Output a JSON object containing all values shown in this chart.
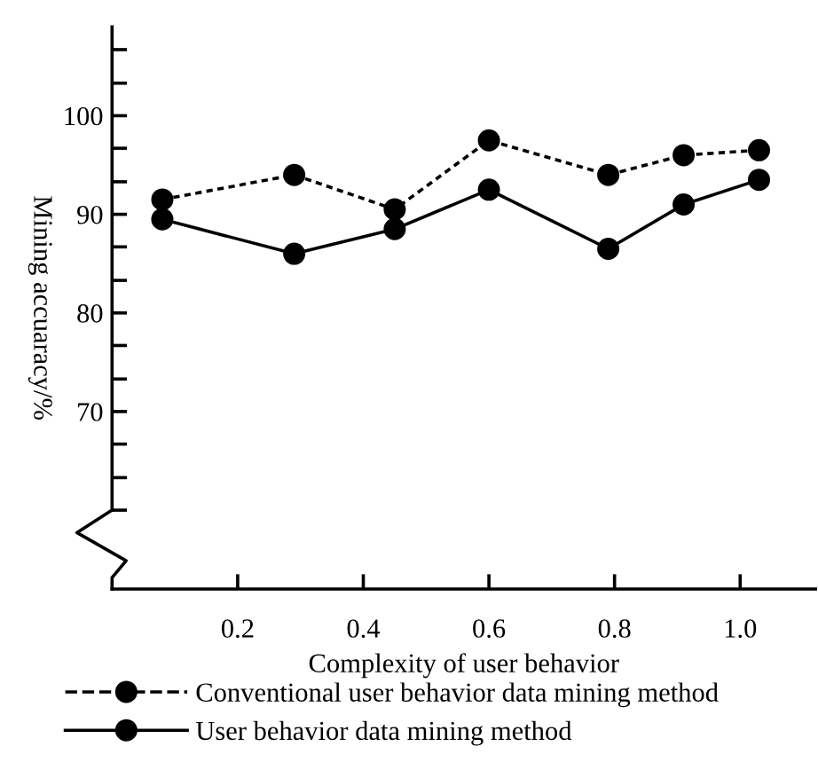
{
  "chart_data": {
    "type": "line",
    "xlabel": "Complexity of user behavior",
    "ylabel": "Mining accuaracy/%",
    "x": [
      0.08,
      0.29,
      0.45,
      0.6,
      0.79,
      0.91,
      1.03
    ],
    "series": [
      {
        "name": "Conventional user behavior data mining method",
        "color": "#000000",
        "line_style": "dotted",
        "values": [
          91.5,
          94,
          90.5,
          97.5,
          94,
          96,
          96.5
        ]
      },
      {
        "name": "User behavior data mining method",
        "color": "#000000",
        "line_style": "solid",
        "values": [
          89.5,
          86,
          88.5,
          92.5,
          86.5,
          91,
          93.5
        ]
      }
    ],
    "xlim": [
      0,
      1.12
    ],
    "xticks": [
      {
        "value": 0.2,
        "label": "0.2"
      },
      {
        "value": 0.4,
        "label": "0.4"
      },
      {
        "value": 0.6,
        "label": "0.6"
      },
      {
        "value": 0.8,
        "label": "0.8"
      },
      {
        "value": 1.0,
        "label": "1.0"
      }
    ],
    "ylim": [
      52,
      109
    ],
    "yticks": [
      {
        "value": 60,
        "label": null
      },
      {
        "value": 63.3,
        "label": null
      },
      {
        "value": 66.7,
        "label": null
      },
      70,
      {
        "value": 73.3,
        "label": null
      },
      {
        "value": 76.7,
        "label": null
      },
      80,
      {
        "value": 83.3,
        "label": null
      },
      {
        "value": 86.7,
        "label": null
      },
      90,
      {
        "value": 93.3,
        "label": null
      },
      {
        "value": 96.7,
        "label": null
      },
      100,
      {
        "value": 103.3,
        "label": null
      },
      {
        "value": 106.7,
        "label": null
      }
    ],
    "marker": "circle",
    "grid": false,
    "legend": "bottom"
  }
}
